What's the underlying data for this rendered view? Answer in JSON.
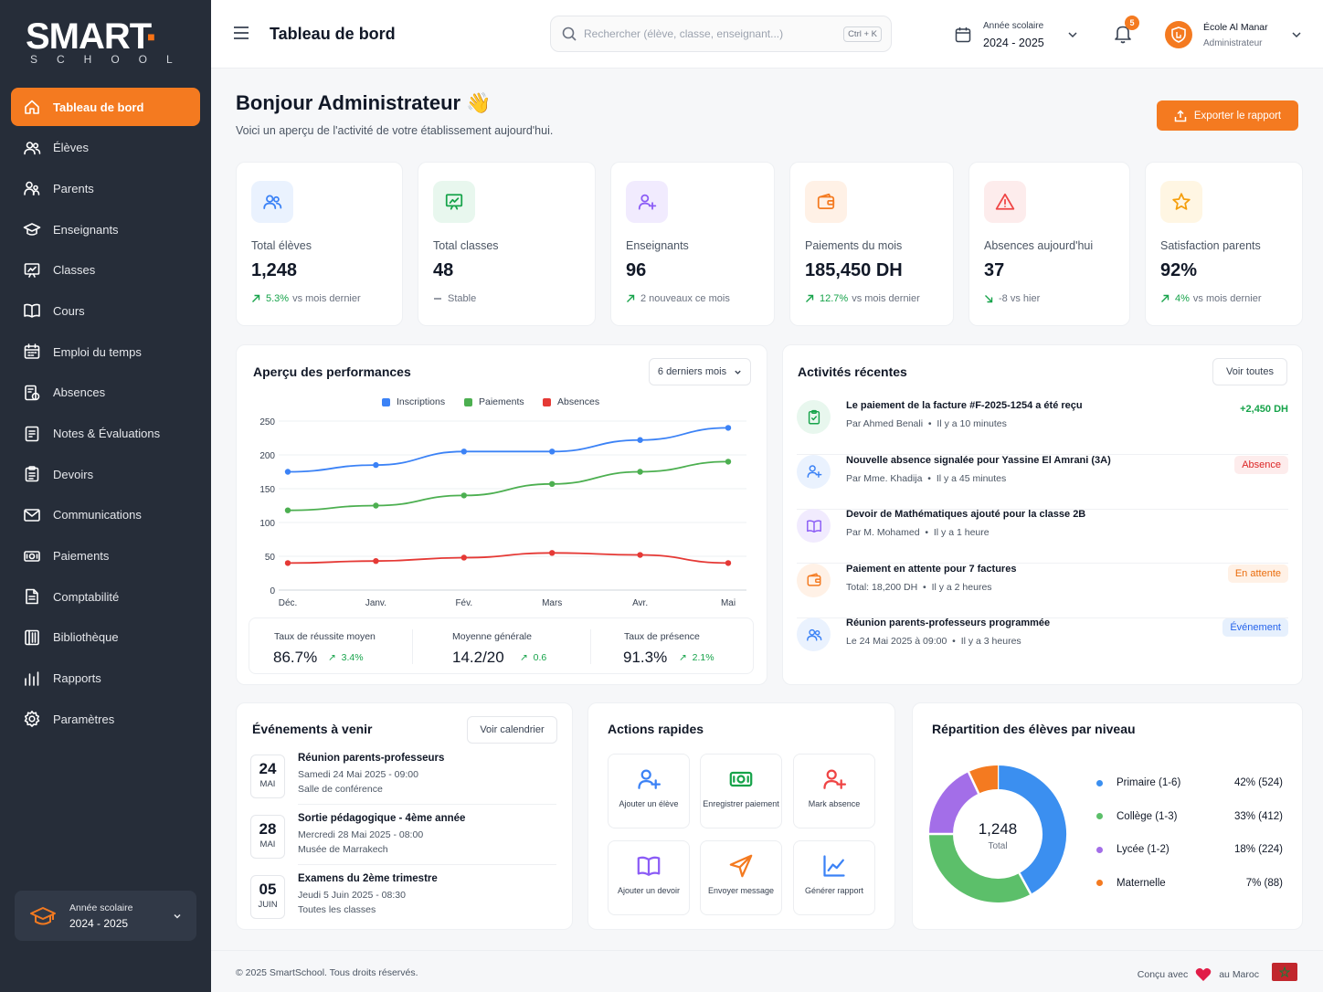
{
  "brand": {
    "name": "SMART",
    "sub": "SCHOOL"
  },
  "nav": [
    {
      "label": "Tableau de bord",
      "icon": "home-icon",
      "active": true
    },
    {
      "label": "Élèves",
      "icon": "users-icon"
    },
    {
      "label": "Parents",
      "icon": "parents-icon"
    },
    {
      "label": "Enseignants",
      "icon": "graduation-cap-icon"
    },
    {
      "label": "Classes",
      "icon": "board-icon"
    },
    {
      "label": "Cours",
      "icon": "book-icon"
    },
    {
      "label": "Emploi du temps",
      "icon": "calendar-icon"
    },
    {
      "label": "Absences",
      "icon": "absence-icon"
    },
    {
      "label": "Notes & Évaluations",
      "icon": "notes-icon"
    },
    {
      "label": "Devoirs",
      "icon": "clipboard-icon"
    },
    {
      "label": "Communications",
      "icon": "mail-icon"
    },
    {
      "label": "Paiements",
      "icon": "money-icon"
    },
    {
      "label": "Comptabilité",
      "icon": "document-icon"
    },
    {
      "label": "Bibliothèque",
      "icon": "library-icon"
    },
    {
      "label": "Rapports",
      "icon": "bar-chart-icon"
    },
    {
      "label": "Paramètres",
      "icon": "gear-icon"
    }
  ],
  "sidebar_year": {
    "label": "Année scolaire",
    "value": "2024 - 2025"
  },
  "header": {
    "title": "Tableau de bord",
    "search_placeholder": "Rechercher (élève, classe, enseignant...)",
    "shortcut": "Ctrl + K",
    "year_label": "Année scolaire",
    "year_value": "2024 - 2025",
    "notifications": "5",
    "school_name": "École Al Manar",
    "school_role": "Administrateur"
  },
  "greeting": {
    "title": "Bonjour Administrateur",
    "emoji": "👋",
    "subtitle": "Voici un aperçu de l'activité de votre établissement aujourd'hui.",
    "export": "Exporter le rapport"
  },
  "stats": [
    {
      "label": "Total élèves",
      "value": "1,248",
      "change": "5.3%",
      "note": "vs mois dernier",
      "trend": "up",
      "color": "#3b82f6",
      "bg": "#eaf2fe",
      "icon": "users-icon"
    },
    {
      "label": "Total classes",
      "value": "48",
      "change": "",
      "note": "Stable",
      "trend": "flat",
      "color": "#16a34a",
      "bg": "#e8f7ee",
      "icon": "board-icon"
    },
    {
      "label": "Enseignants",
      "value": "96",
      "change": "",
      "note": "2 nouveaux ce mois",
      "trend": "up",
      "color": "#8b5cf6",
      "bg": "#f1ebfe",
      "icon": "user-plus-icon"
    },
    {
      "label": "Paiements du mois",
      "value": "185,450 DH",
      "change": "12.7%",
      "note": "vs mois dernier",
      "trend": "up",
      "color": "#f47a20",
      "bg": "#fff1e6",
      "icon": "wallet-icon"
    },
    {
      "label": "Absences aujourd'hui",
      "value": "37",
      "change": "",
      "note": "-8 vs hier",
      "trend": "down",
      "color": "#ef4444",
      "bg": "#fdecec",
      "icon": "warning-icon"
    },
    {
      "label": "Satisfaction parents",
      "value": "92%",
      "change": "4%",
      "note": "vs mois dernier",
      "trend": "up",
      "color": "#f59e0b",
      "bg": "#fff6e3",
      "icon": "star-icon"
    }
  ],
  "performance": {
    "title": "Aperçu des performances",
    "period": "6 derniers mois"
  },
  "chart_data": {
    "type": "line",
    "categories": [
      "Déc.",
      "Janv.",
      "Fév.",
      "Mars",
      "Avr.",
      "Mai"
    ],
    "series": [
      {
        "name": "Inscriptions",
        "color": "#3b82f6",
        "values": [
          175,
          185,
          205,
          205,
          222,
          240
        ]
      },
      {
        "name": "Paiements",
        "color": "#4caf50",
        "values": [
          118,
          125,
          140,
          157,
          175,
          190
        ]
      },
      {
        "name": "Absences",
        "color": "#e53935",
        "values": [
          40,
          43,
          48,
          55,
          52,
          40
        ]
      }
    ],
    "yticks": [
      0,
      50,
      100,
      150,
      200,
      250
    ],
    "ylim": [
      0,
      250
    ],
    "grid": true,
    "legend": "top"
  },
  "kpis": [
    {
      "label": "Taux de réussite moyen",
      "value": "86.7%",
      "delta": "3.4%"
    },
    {
      "label": "Moyenne générale",
      "value": "14.2/20",
      "delta": "0.6"
    },
    {
      "label": "Taux de présence",
      "value": "91.3%",
      "delta": "2.1%"
    }
  ],
  "activities": {
    "title": "Activités récentes",
    "all": "Voir toutes",
    "items": [
      {
        "title": "Le paiement de la facture #F-2025-1254 a été reçu",
        "by": "Par Ahmed Benali",
        "time": "Il y a 10 minutes",
        "right": "+2,450 DH",
        "kind": "amount",
        "color": "#16a34a",
        "bg": "#e8f7ee",
        "icon": "receipt-icon"
      },
      {
        "title": "Nouvelle absence signalée pour Yassine El Amrani (3A)",
        "by": "Par Mme. Khadija",
        "time": "Il y a 45 minutes",
        "right": "Absence",
        "kind": "red",
        "color": "#3b82f6",
        "bg": "#eaf2fe",
        "icon": "user-absence-icon"
      },
      {
        "title": "Devoir de Mathématiques ajouté pour la classe 2B",
        "by": "Par M. Mohamed",
        "time": "Il y a 1 heure",
        "right": "",
        "kind": "none",
        "color": "#8b5cf6",
        "bg": "#f1ebfe",
        "icon": "book-icon"
      },
      {
        "title": "Paiement en attente pour 7 factures",
        "by": "Total: 18,200 DH",
        "time": "Il y a 2 heures",
        "right": "En attente",
        "kind": "orange",
        "color": "#f47a20",
        "bg": "#fff1e6",
        "icon": "wallet-icon"
      },
      {
        "title": "Réunion parents-professeurs programmée",
        "by": "Le 24 Mai 2025 à 09:00",
        "time": "Il y a 3 heures",
        "right": "Événement",
        "kind": "blue",
        "color": "#3b82f6",
        "bg": "#eaf2fe",
        "icon": "users-icon"
      }
    ]
  },
  "events": {
    "title": "Événements à venir",
    "calendar": "Voir calendrier",
    "items": [
      {
        "day": "24",
        "month": "MAI",
        "title": "Réunion parents-professeurs",
        "when": "Samedi 24 Mai 2025 - 09:00",
        "where": "Salle de conférence"
      },
      {
        "day": "28",
        "month": "MAI",
        "title": "Sortie pédagogique - 4ème année",
        "when": "Mercredi 28 Mai 2025 - 08:00",
        "where": "Musée de Marrakech"
      },
      {
        "day": "05",
        "month": "JUIN",
        "title": "Examens du 2ème trimestre",
        "when": "Jeudi 5 Juin 2025 - 08:30",
        "where": "Toutes les classes"
      }
    ]
  },
  "quick": {
    "title": "Actions rapides",
    "items": [
      {
        "label": "Ajouter un élève",
        "icon": "user-plus-icon",
        "color": "#3b82f6"
      },
      {
        "label": "Enregistrer paiement",
        "icon": "money-icon",
        "color": "#16a34a"
      },
      {
        "label": "Mark absence",
        "icon": "user-absence-icon",
        "color": "#ef4444"
      },
      {
        "label": "Ajouter un devoir",
        "icon": "book-icon",
        "color": "#8b5cf6"
      },
      {
        "label": "Envoyer message",
        "icon": "send-icon",
        "color": "#f47a20"
      },
      {
        "label": "Générer rapport",
        "icon": "line-chart-icon",
        "color": "#3b82f6"
      }
    ]
  },
  "distribution": {
    "title": "Répartition des élèves par niveau",
    "total": "1,248",
    "total_label": "Total",
    "items": [
      {
        "name": "Primaire (1-6)",
        "pct": 42,
        "value": "42% (524)",
        "color": "#3b8ff0"
      },
      {
        "name": "Collège (1-3)",
        "pct": 33,
        "value": "33% (412)",
        "color": "#5cbf6a"
      },
      {
        "name": "Lycée (1-2)",
        "pct": 18,
        "value": "18% (224)",
        "color": "#a36ee8"
      },
      {
        "name": "Maternelle",
        "pct": 7,
        "value": "7% (88)",
        "color": "#f47a20"
      }
    ]
  },
  "footer": {
    "copyright": "© 2025 SmartSchool. Tous droits réservés.",
    "made_a": "Conçu avec",
    "made_b": "au Maroc"
  }
}
